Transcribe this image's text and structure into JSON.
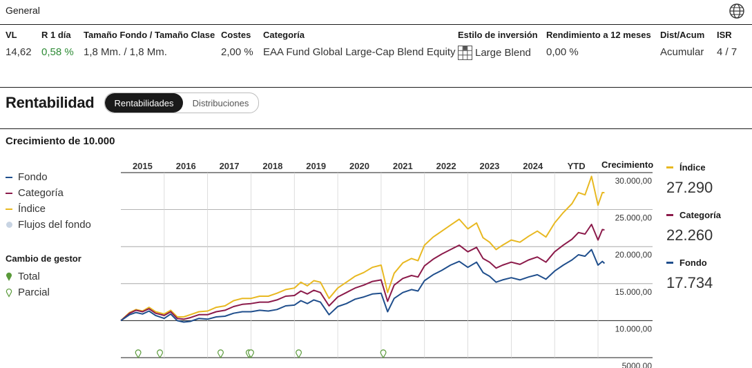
{
  "general": {
    "title": "General"
  },
  "summary": {
    "headers": {
      "vl": "VL",
      "r1": "R 1 día",
      "size": "Tamaño Fondo / Tamaño Clase",
      "costs": "Costes",
      "category": "Categoría",
      "style": "Estilo de inversión",
      "yield12": "Rendimiento a 12 meses",
      "dist": "Dist/Acum",
      "isr": "ISR"
    },
    "values": {
      "vl": "14,62",
      "r1": "0,58 %",
      "size": "1,8 Mm. / 1,8 Mm.",
      "costs": "2,00 %",
      "category": "EAA Fund Global Large-Cap Blend Equity",
      "style": "Large Blend",
      "yield12": "0,00 %",
      "dist": "Acumular",
      "isr": "4 / 7"
    },
    "colors": {
      "positive": "#2e8b36"
    }
  },
  "performance": {
    "title": "Rentabilidad",
    "tabs": [
      "Rentabilidades",
      "Distribuciones"
    ],
    "active_tab": "Rentabilidades"
  },
  "growth": {
    "title": "Crecimiento de 10.000",
    "legend": {
      "fund": "Fondo",
      "category": "Categoría",
      "index": "Índice",
      "flows": "Flujos del fondo"
    },
    "manager_change": {
      "title": "Cambio de gestor",
      "total": "Total",
      "partial": "Parcial"
    },
    "right_legend": {
      "index_label": "Índice",
      "index_value": "27.290",
      "category_label": "Categoría",
      "category_value": "22.260",
      "fund_label": "Fondo",
      "fund_value": "17.734"
    },
    "axis_header": "Crecimiento"
  },
  "chart_data": {
    "type": "line",
    "x_ticks": [
      "2015",
      "2016",
      "2017",
      "2018",
      "2019",
      "2020",
      "2021",
      "2022",
      "2023",
      "2024",
      "YTD"
    ],
    "y_ticks": [
      "30.000,00",
      "25.000,00",
      "20.000,00",
      "15.000,00",
      "10.000,00",
      "5000,00"
    ],
    "ylim": [
      5000,
      30000
    ],
    "xlim": [
      2014.0,
      2025.0
    ],
    "colors": {
      "fund": "#1f4e8c",
      "category": "#8b1a4a",
      "index": "#e8b820",
      "marker": "#5a9a3a"
    },
    "series": [
      {
        "name": "Fondo",
        "key": "fund",
        "points": [
          [
            2014.0,
            10000
          ],
          [
            2014.2,
            10800
          ],
          [
            2014.35,
            11100
          ],
          [
            2014.5,
            10900
          ],
          [
            2014.65,
            11300
          ],
          [
            2014.8,
            10700
          ],
          [
            2015.0,
            10300
          ],
          [
            2015.15,
            10900
          ],
          [
            2015.3,
            10000
          ],
          [
            2015.45,
            9800
          ],
          [
            2015.6,
            9900
          ],
          [
            2015.8,
            10300
          ],
          [
            2016.0,
            10200
          ],
          [
            2016.2,
            10500
          ],
          [
            2016.4,
            10600
          ],
          [
            2016.6,
            11000
          ],
          [
            2016.8,
            11200
          ],
          [
            2017.0,
            11200
          ],
          [
            2017.2,
            11400
          ],
          [
            2017.4,
            11300
          ],
          [
            2017.6,
            11500
          ],
          [
            2017.8,
            12000
          ],
          [
            2018.0,
            12100
          ],
          [
            2018.15,
            12700
          ],
          [
            2018.3,
            12300
          ],
          [
            2018.45,
            12800
          ],
          [
            2018.6,
            12500
          ],
          [
            2018.8,
            10800
          ],
          [
            2019.0,
            11900
          ],
          [
            2019.2,
            12300
          ],
          [
            2019.4,
            12900
          ],
          [
            2019.6,
            13200
          ],
          [
            2019.8,
            13600
          ],
          [
            2020.0,
            13700
          ],
          [
            2020.15,
            11200
          ],
          [
            2020.3,
            13000
          ],
          [
            2020.5,
            13800
          ],
          [
            2020.7,
            14200
          ],
          [
            2020.85,
            14000
          ],
          [
            2021.0,
            15400
          ],
          [
            2021.2,
            16200
          ],
          [
            2021.4,
            16800
          ],
          [
            2021.6,
            17500
          ],
          [
            2021.8,
            18000
          ],
          [
            2022.0,
            17200
          ],
          [
            2022.2,
            17900
          ],
          [
            2022.35,
            16500
          ],
          [
            2022.5,
            16000
          ],
          [
            2022.65,
            15200
          ],
          [
            2022.8,
            15500
          ],
          [
            2023.0,
            15800
          ],
          [
            2023.2,
            15500
          ],
          [
            2023.4,
            15900
          ],
          [
            2023.6,
            16200
          ],
          [
            2023.8,
            15600
          ],
          [
            2024.0,
            16700
          ],
          [
            2024.2,
            17500
          ],
          [
            2024.4,
            18200
          ],
          [
            2024.55,
            18900
          ],
          [
            2024.7,
            18700
          ],
          [
            2024.85,
            19600
          ],
          [
            2025.0,
            17500
          ],
          [
            2025.1,
            18000
          ],
          [
            2025.15,
            17734
          ]
        ]
      },
      {
        "name": "Categoría",
        "key": "category",
        "points": [
          [
            2014.0,
            10000
          ],
          [
            2014.2,
            11000
          ],
          [
            2014.35,
            11400
          ],
          [
            2014.5,
            11200
          ],
          [
            2014.65,
            11600
          ],
          [
            2014.8,
            11000
          ],
          [
            2015.0,
            10700
          ],
          [
            2015.15,
            11200
          ],
          [
            2015.3,
            10300
          ],
          [
            2015.45,
            10200
          ],
          [
            2015.6,
            10400
          ],
          [
            2015.8,
            10800
          ],
          [
            2016.0,
            10800
          ],
          [
            2016.2,
            11200
          ],
          [
            2016.4,
            11400
          ],
          [
            2016.6,
            11900
          ],
          [
            2016.8,
            12200
          ],
          [
            2017.0,
            12300
          ],
          [
            2017.2,
            12500
          ],
          [
            2017.4,
            12500
          ],
          [
            2017.6,
            12800
          ],
          [
            2017.8,
            13300
          ],
          [
            2018.0,
            13400
          ],
          [
            2018.15,
            14000
          ],
          [
            2018.3,
            13600
          ],
          [
            2018.45,
            14100
          ],
          [
            2018.6,
            13800
          ],
          [
            2018.8,
            12000
          ],
          [
            2019.0,
            13200
          ],
          [
            2019.2,
            13800
          ],
          [
            2019.4,
            14400
          ],
          [
            2019.6,
            14800
          ],
          [
            2019.8,
            15300
          ],
          [
            2020.0,
            15500
          ],
          [
            2020.15,
            12600
          ],
          [
            2020.3,
            14800
          ],
          [
            2020.5,
            15700
          ],
          [
            2020.7,
            16100
          ],
          [
            2020.85,
            15900
          ],
          [
            2021.0,
            17400
          ],
          [
            2021.2,
            18300
          ],
          [
            2021.4,
            19000
          ],
          [
            2021.6,
            19600
          ],
          [
            2021.8,
            20200
          ],
          [
            2022.0,
            19300
          ],
          [
            2022.2,
            19900
          ],
          [
            2022.35,
            18400
          ],
          [
            2022.5,
            17900
          ],
          [
            2022.65,
            17100
          ],
          [
            2022.8,
            17500
          ],
          [
            2023.0,
            17900
          ],
          [
            2023.2,
            17600
          ],
          [
            2023.4,
            18200
          ],
          [
            2023.6,
            18600
          ],
          [
            2023.8,
            17900
          ],
          [
            2024.0,
            19300
          ],
          [
            2024.2,
            20200
          ],
          [
            2024.4,
            21000
          ],
          [
            2024.55,
            21900
          ],
          [
            2024.7,
            21700
          ],
          [
            2024.85,
            23000
          ],
          [
            2025.0,
            20900
          ],
          [
            2025.1,
            22300
          ],
          [
            2025.15,
            22260
          ]
        ]
      },
      {
        "name": "Índice",
        "key": "index",
        "points": [
          [
            2014.0,
            10000
          ],
          [
            2014.2,
            11100
          ],
          [
            2014.35,
            11500
          ],
          [
            2014.5,
            11300
          ],
          [
            2014.65,
            11800
          ],
          [
            2014.8,
            11200
          ],
          [
            2015.0,
            10900
          ],
          [
            2015.15,
            11400
          ],
          [
            2015.3,
            10500
          ],
          [
            2015.45,
            10500
          ],
          [
            2015.6,
            10800
          ],
          [
            2015.8,
            11200
          ],
          [
            2016.0,
            11300
          ],
          [
            2016.2,
            11800
          ],
          [
            2016.4,
            12000
          ],
          [
            2016.6,
            12700
          ],
          [
            2016.8,
            13000
          ],
          [
            2017.0,
            13000
          ],
          [
            2017.2,
            13300
          ],
          [
            2017.4,
            13300
          ],
          [
            2017.6,
            13700
          ],
          [
            2017.8,
            14200
          ],
          [
            2018.0,
            14400
          ],
          [
            2018.15,
            15200
          ],
          [
            2018.3,
            14700
          ],
          [
            2018.45,
            15400
          ],
          [
            2018.6,
            15200
          ],
          [
            2018.8,
            13000
          ],
          [
            2019.0,
            14400
          ],
          [
            2019.2,
            15200
          ],
          [
            2019.4,
            16000
          ],
          [
            2019.6,
            16500
          ],
          [
            2019.8,
            17200
          ],
          [
            2020.0,
            17500
          ],
          [
            2020.15,
            13800
          ],
          [
            2020.3,
            16400
          ],
          [
            2020.5,
            17800
          ],
          [
            2020.7,
            18400
          ],
          [
            2020.85,
            18100
          ],
          [
            2021.0,
            20200
          ],
          [
            2021.2,
            21300
          ],
          [
            2021.4,
            22100
          ],
          [
            2021.6,
            22900
          ],
          [
            2021.8,
            23700
          ],
          [
            2022.0,
            22400
          ],
          [
            2022.2,
            23200
          ],
          [
            2022.35,
            21200
          ],
          [
            2022.5,
            20600
          ],
          [
            2022.65,
            19600
          ],
          [
            2022.8,
            20200
          ],
          [
            2023.0,
            20900
          ],
          [
            2023.2,
            20600
          ],
          [
            2023.4,
            21400
          ],
          [
            2023.6,
            22100
          ],
          [
            2023.8,
            21300
          ],
          [
            2024.0,
            23200
          ],
          [
            2024.2,
            24600
          ],
          [
            2024.4,
            25800
          ],
          [
            2024.55,
            27300
          ],
          [
            2024.7,
            27000
          ],
          [
            2024.85,
            29500
          ],
          [
            2025.0,
            25600
          ],
          [
            2025.1,
            27300
          ],
          [
            2025.15,
            27290
          ]
        ]
      }
    ],
    "manager_change_partial": [
      2014.4,
      2014.9,
      2016.3,
      2016.95,
      2017.0,
      2018.1,
      2020.05
    ]
  }
}
